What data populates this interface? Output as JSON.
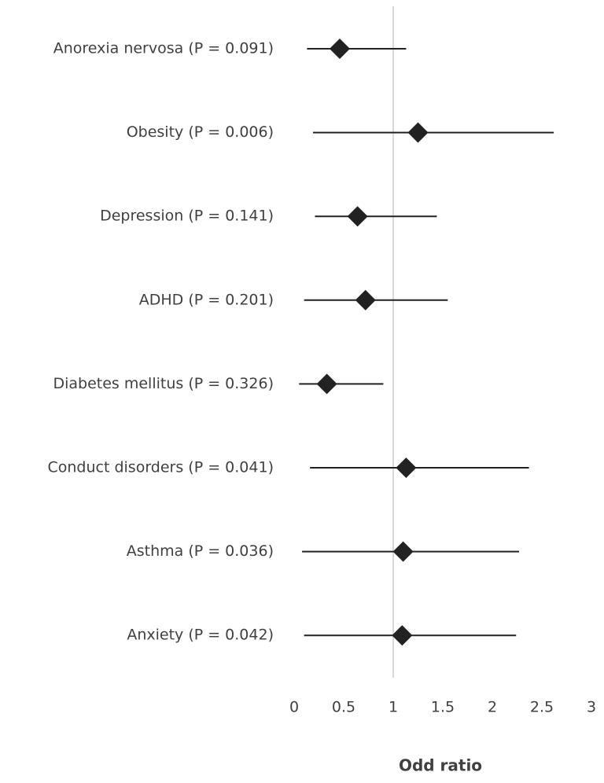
{
  "chart_data": {
    "type": "forest",
    "x_label": "Odd ratio",
    "categories": [
      "Anorexia nervosa (P = 0.091)",
      "Obesity (P = 0.006)",
      "Depression (P = 0.141)",
      "ADHD (P = 0.201)",
      "Diabetes mellitus (P = 0.326)",
      "Conduct disorders (P = 0.041)",
      "Asthma (P = 0.036)",
      "Anxiety (P = 0.042)"
    ],
    "values": [
      0.46,
      1.25,
      0.64,
      0.72,
      0.33,
      1.13,
      1.1,
      1.09
    ],
    "lower": [
      0.13,
      0.19,
      0.21,
      0.1,
      0.05,
      0.16,
      0.08,
      0.1
    ],
    "upper": [
      1.13,
      2.62,
      1.44,
      1.55,
      0.9,
      2.37,
      2.27,
      2.24
    ],
    "color": "#222222",
    "reference_line": 1,
    "reference_color": "#cccccc",
    "xlim": [
      0,
      3
    ],
    "xticks": [
      0,
      0.5,
      1,
      1.5,
      2,
      2.5,
      3
    ]
  }
}
